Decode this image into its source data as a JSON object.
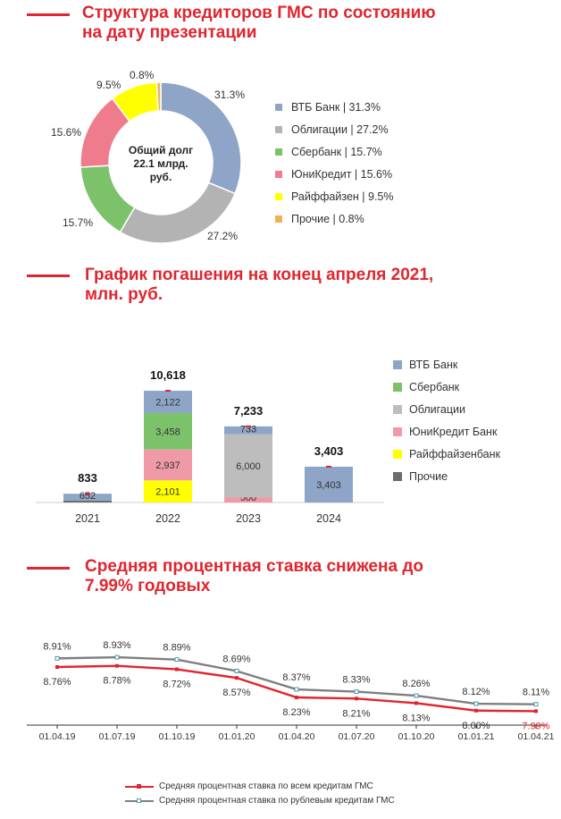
{
  "section1": {
    "title_line1": "Структура кредиторов ГМС по состоянию",
    "title_line2": "на дату презентации"
  },
  "section2": {
    "title_line1": "График погашения на конец апреля 2021,",
    "title_line2": "млн. руб."
  },
  "section3": {
    "title_line1": "Средняя процентная ставка снижена до",
    "title_line2": "7.99% годовых"
  },
  "colors": {
    "accent_red": "#e0252e",
    "vtb": "#8ea5c8",
    "bonds": "#b3b3b3",
    "sber": "#7cc26a",
    "unicredit": "#ef7b8d",
    "raiffeisen": "#ffff00",
    "other": "#f0b05a",
    "other_bar": "#6d6d6d"
  },
  "chart_data": [
    {
      "type": "pie",
      "variant": "donut",
      "center_text": [
        "Общий долг",
        "22.1 млрд.",
        "руб."
      ],
      "slices": [
        {
          "legend": "ВТБ Банк | 31.3%",
          "value": 31.3,
          "label": "31.3%",
          "color": "#8ea5c8"
        },
        {
          "legend": "Облигации | 27.2%",
          "value": 27.2,
          "label": "27.2%",
          "color": "#b3b3b3"
        },
        {
          "legend": "Сбербанк | 15.7%",
          "value": 15.7,
          "label": "15.7%",
          "color": "#7cc26a"
        },
        {
          "legend": "ЮниКредит | 15.6%",
          "value": 15.6,
          "label": "15.6%",
          "color": "#ef7b8d"
        },
        {
          "legend": "Райффайзен | 9.5%",
          "value": 9.5,
          "label": "9.5%",
          "color": "#ffff00"
        },
        {
          "legend": "Прочие | 0.8%",
          "value": 0.8,
          "label": "0.8%",
          "color": "#f0b05a"
        }
      ],
      "legend_position": "right"
    },
    {
      "type": "bar",
      "stacked": true,
      "categories": [
        "2021",
        "2022",
        "2023",
        "2024"
      ],
      "totals": [
        "833",
        "10,618",
        "7,233",
        "3,403"
      ],
      "total_values": [
        833,
        10618,
        7233,
        3403
      ],
      "series": [
        {
          "name": "Прочие",
          "color": "#6d6d6d",
          "values": [
            181,
            0,
            0,
            0
          ],
          "labels": [
            "",
            "",
            "",
            ""
          ]
        },
        {
          "name": "Райффайзенбанк",
          "color": "#ffff00",
          "values": [
            0,
            2101,
            0,
            0
          ],
          "labels": [
            "",
            "2,101",
            "",
            ""
          ]
        },
        {
          "name": "ЮниКредит Банк",
          "color": "#ef9aa6",
          "values": [
            0,
            2937,
            500,
            0
          ],
          "labels": [
            "",
            "2,937",
            "500",
            ""
          ]
        },
        {
          "name": "Облигации",
          "color": "#bdbdbd",
          "values": [
            0,
            0,
            6000,
            0
          ],
          "labels": [
            "",
            "",
            "6,000",
            ""
          ]
        },
        {
          "name": "Сбербанк",
          "color": "#7cc26a",
          "values": [
            0,
            3458,
            0,
            0
          ],
          "labels": [
            "",
            "3,458",
            "",
            ""
          ]
        },
        {
          "name": "ВТБ Банк",
          "color": "#8ea5c8",
          "values": [
            652,
            2122,
            733,
            3403
          ],
          "labels": [
            "652",
            "2,122",
            "733",
            "3,403"
          ]
        }
      ],
      "legend_order": [
        "ВТБ Банк",
        "Сбербанк",
        "Облигации",
        "ЮниКредит Банк",
        "Райффайзенбанк",
        "Прочие"
      ],
      "legend_position": "right"
    },
    {
      "type": "line",
      "x": [
        "01.04.19",
        "01.07.19",
        "01.10.19",
        "01.01.20",
        "01.04.20",
        "01.07.20",
        "01.10.20",
        "01.01.21",
        "01.04.21"
      ],
      "series": [
        {
          "name": "Средняя процентная ставка по всем кредитам ГМС",
          "color": "#e0252e",
          "values": [
            8.76,
            8.78,
            8.72,
            8.57,
            8.23,
            8.21,
            8.13,
            8.0,
            7.99
          ],
          "labels": [
            "8.76%",
            "8.78%",
            "8.72%",
            "8.57%",
            "8.23%",
            "8.21%",
            "8.13%",
            "8.00%",
            "7.99%"
          ]
        },
        {
          "name": "Средняя процентная ставка по рублевым кредитам ГМС",
          "color": "#7f7f7f",
          "values": [
            8.91,
            8.93,
            8.89,
            8.69,
            8.37,
            8.33,
            8.26,
            8.12,
            8.11
          ],
          "labels": [
            "8.91%",
            "8.93%",
            "8.89%",
            "8.69%",
            "8.37%",
            "8.33%",
            "8.26%",
            "8.12%",
            "8.11%"
          ]
        }
      ],
      "legend_position": "bottom"
    }
  ]
}
